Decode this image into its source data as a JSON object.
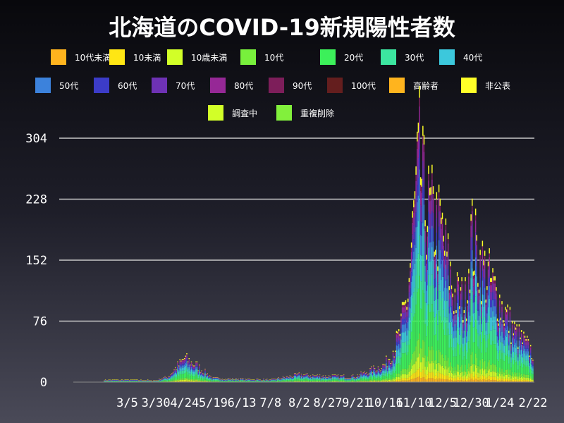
{
  "chart_data": {
    "type": "bar",
    "stacked": true,
    "title": "北海道のCOVID-19新規陽性者数",
    "xlabel": "",
    "ylabel": "",
    "ylim": [
      0,
      304
    ],
    "yticks": [
      0,
      76,
      152,
      228,
      304
    ],
    "grid": true,
    "legend_position": "top",
    "xtick_labels": [
      "3/5",
      "3/30",
      "4/24",
      "5/19",
      "6/13",
      "7/8",
      "8/2",
      "8/27",
      "9/21",
      "10/16",
      "11/10",
      "12/5",
      "12/30",
      "1/24",
      "2/22"
    ],
    "series": [
      {
        "name": "10代未満",
        "color": "#ffb41e"
      },
      {
        "name": "10未満",
        "color": "#ffe614"
      },
      {
        "name": "10歳未満",
        "color": "#d2ff28"
      },
      {
        "name": "10代",
        "color": "#78f03c"
      },
      {
        "name": "20代",
        "color": "#3cf05a"
      },
      {
        "name": "30代",
        "color": "#3ce6a0"
      },
      {
        "name": "40代",
        "color": "#3cc8dc"
      },
      {
        "name": "50代",
        "color": "#3c82dc"
      },
      {
        "name": "60代",
        "color": "#3c3cc8"
      },
      {
        "name": "70代",
        "color": "#6e32b4"
      },
      {
        "name": "80代",
        "color": "#962896"
      },
      {
        "name": "90代",
        "color": "#7d1e5a"
      },
      {
        "name": "100代",
        "color": "#641e1e"
      },
      {
        "name": "高齢者",
        "color": "#ffb41e"
      },
      {
        "name": "非公表",
        "color": "#ffff28"
      },
      {
        "name": "調査中",
        "color": "#d2ff28"
      },
      {
        "name": "重複削除",
        "color": "#82f03c"
      }
    ],
    "daily_totals_anchors": [
      [
        "3/5",
        3
      ],
      [
        "3/30",
        2
      ],
      [
        "4/10",
        8
      ],
      [
        "4/24",
        32
      ],
      [
        "5/5",
        22
      ],
      [
        "5/19",
        5
      ],
      [
        "6/13",
        4
      ],
      [
        "7/8",
        3
      ],
      [
        "8/2",
        10
      ],
      [
        "8/27",
        8
      ],
      [
        "9/21",
        8
      ],
      [
        "10/16",
        24
      ],
      [
        "10/28",
        60
      ],
      [
        "11/5",
        120
      ],
      [
        "11/10",
        220
      ],
      [
        "11/15",
        300
      ],
      [
        "11/20",
        240
      ],
      [
        "12/5",
        200
      ],
      [
        "12/15",
        120
      ],
      [
        "12/25",
        110
      ],
      [
        "12/30",
        200
      ],
      [
        "1/5",
        170
      ],
      [
        "1/24",
        110
      ],
      [
        "2/5",
        70
      ],
      [
        "2/22",
        40
      ]
    ]
  }
}
